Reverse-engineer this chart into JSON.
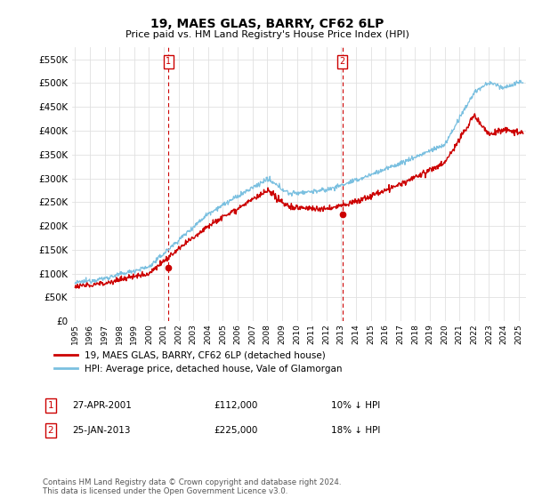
{
  "title": "19, MAES GLAS, BARRY, CF62 6LP",
  "subtitle": "Price paid vs. HM Land Registry's House Price Index (HPI)",
  "ylabel_ticks": [
    "£0",
    "£50K",
    "£100K",
    "£150K",
    "£200K",
    "£250K",
    "£300K",
    "£350K",
    "£400K",
    "£450K",
    "£500K",
    "£550K"
  ],
  "ylim": [
    0,
    575000
  ],
  "xlim_start": 1994.8,
  "xlim_end": 2025.5,
  "sale1_x": 2001.32,
  "sale1_y": 112000,
  "sale1_label": "1",
  "sale1_date": "27-APR-2001",
  "sale1_price": "£112,000",
  "sale1_note": "10% ↓ HPI",
  "sale2_x": 2013.07,
  "sale2_y": 225000,
  "sale2_label": "2",
  "sale2_date": "25-JAN-2013",
  "sale2_price": "£225,000",
  "sale2_note": "18% ↓ HPI",
  "hpi_color": "#7bc0e0",
  "price_color": "#cc0000",
  "vline_color": "#cc0000",
  "legend_label1": "19, MAES GLAS, BARRY, CF62 6LP (detached house)",
  "legend_label2": "HPI: Average price, detached house, Vale of Glamorgan",
  "footnote": "Contains HM Land Registry data © Crown copyright and database right 2024.\nThis data is licensed under the Open Government Licence v3.0.",
  "x_ticks": [
    1995,
    1996,
    1997,
    1998,
    1999,
    2000,
    2001,
    2002,
    2003,
    2004,
    2005,
    2006,
    2007,
    2008,
    2009,
    2010,
    2011,
    2012,
    2013,
    2014,
    2015,
    2016,
    2017,
    2018,
    2019,
    2020,
    2021,
    2022,
    2023,
    2024,
    2025
  ],
  "grid_color": "#e0e0e0",
  "background_color": "#ffffff"
}
